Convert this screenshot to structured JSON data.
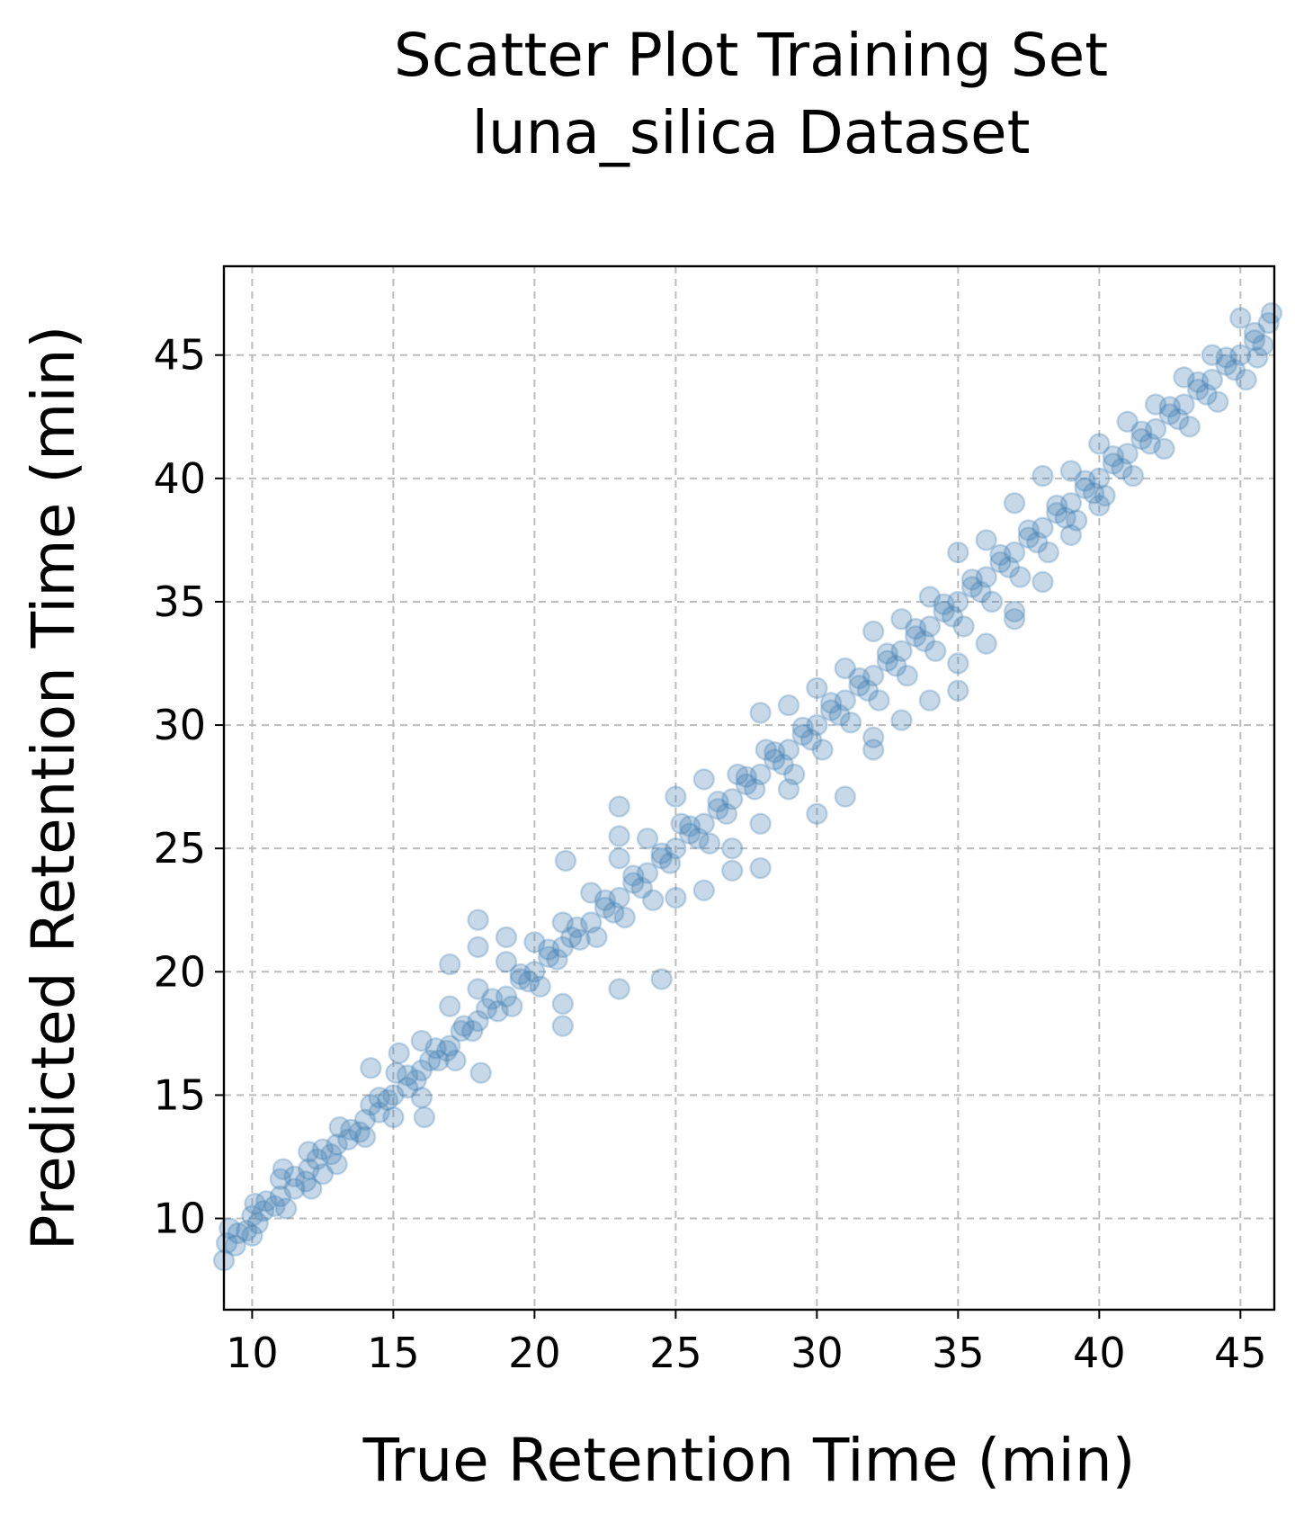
{
  "chart_data": {
    "type": "scatter",
    "title_line1": "Scatter Plot Training Set",
    "title_line2": "luna_silica Dataset",
    "xlabel": "True Retention Time (min)",
    "ylabel": "Predicted Retention Time (min)",
    "xlim": [
      9.0,
      46.2
    ],
    "ylim": [
      6.3,
      48.6
    ],
    "xticks": [
      10,
      15,
      20,
      25,
      30,
      35,
      40,
      45
    ],
    "yticks": [
      10,
      15,
      20,
      25,
      30,
      35,
      40,
      45
    ],
    "xtick_labels": [
      "10",
      "15",
      "20",
      "25",
      "30",
      "35",
      "40",
      "45"
    ],
    "ytick_labels": [
      "10",
      "15",
      "20",
      "25",
      "30",
      "35",
      "40",
      "45"
    ],
    "grid": true,
    "marker_color": "#4682b4",
    "marker_alpha": 0.3,
    "series": [
      {
        "points": [
          [
            9.0,
            8.3
          ],
          [
            9.1,
            9.0
          ],
          [
            9.2,
            9.6
          ],
          [
            9.4,
            8.9
          ],
          [
            9.8,
            9.5
          ],
          [
            10.0,
            9.3
          ],
          [
            10.0,
            10.1
          ],
          [
            10.1,
            10.6
          ],
          [
            10.2,
            9.8
          ],
          [
            10.4,
            10.3
          ],
          [
            10.8,
            10.5
          ],
          [
            11.0,
            10.9
          ],
          [
            11.0,
            11.6
          ],
          [
            11.1,
            12.0
          ],
          [
            11.2,
            10.4
          ],
          [
            11.5,
            11.2
          ],
          [
            11.9,
            11.5
          ],
          [
            12.0,
            12.0
          ],
          [
            12.0,
            12.7
          ],
          [
            12.1,
            11.2
          ],
          [
            12.3,
            12.4
          ],
          [
            12.5,
            11.8
          ],
          [
            12.8,
            12.6
          ],
          [
            13.0,
            13.0
          ],
          [
            13.0,
            12.2
          ],
          [
            13.1,
            13.7
          ],
          [
            13.4,
            13.2
          ],
          [
            13.8,
            13.5
          ],
          [
            14.0,
            14.0
          ],
          [
            14.0,
            13.3
          ],
          [
            14.2,
            14.6
          ],
          [
            14.2,
            16.1
          ],
          [
            14.5,
            14.3
          ],
          [
            14.8,
            14.8
          ],
          [
            15.0,
            15.0
          ],
          [
            15.0,
            14.1
          ],
          [
            15.1,
            15.9
          ],
          [
            15.2,
            16.7
          ],
          [
            15.5,
            15.3
          ],
          [
            15.8,
            15.6
          ],
          [
            16.0,
            16.0
          ],
          [
            16.0,
            14.9
          ],
          [
            16.0,
            17.2
          ],
          [
            16.1,
            14.1
          ],
          [
            16.3,
            16.4
          ],
          [
            16.6,
            16.4
          ],
          [
            16.9,
            16.8
          ],
          [
            17.0,
            17.0
          ],
          [
            17.0,
            20.3
          ],
          [
            17.0,
            18.6
          ],
          [
            17.2,
            16.4
          ],
          [
            17.4,
            17.6
          ],
          [
            17.8,
            17.6
          ],
          [
            18.0,
            18.0
          ],
          [
            18.0,
            21.0
          ],
          [
            18.0,
            22.1
          ],
          [
            18.0,
            19.3
          ],
          [
            18.1,
            15.9
          ],
          [
            18.3,
            18.5
          ],
          [
            18.7,
            18.4
          ],
          [
            19.0,
            19.0
          ],
          [
            19.0,
            21.4
          ],
          [
            19.0,
            20.4
          ],
          [
            19.2,
            18.6
          ],
          [
            19.5,
            19.7
          ],
          [
            19.8,
            19.6
          ],
          [
            20.0,
            20.0
          ],
          [
            20.0,
            21.2
          ],
          [
            20.2,
            19.4
          ],
          [
            20.5,
            20.6
          ],
          [
            20.8,
            20.5
          ],
          [
            21.0,
            21.0
          ],
          [
            21.0,
            17.8
          ],
          [
            21.0,
            18.7
          ],
          [
            21.0,
            22.0
          ],
          [
            21.1,
            24.5
          ],
          [
            21.3,
            21.4
          ],
          [
            21.6,
            21.3
          ],
          [
            22.0,
            22.0
          ],
          [
            22.0,
            23.2
          ],
          [
            22.2,
            21.4
          ],
          [
            22.5,
            22.6
          ],
          [
            22.8,
            22.4
          ],
          [
            23.0,
            23.0
          ],
          [
            23.0,
            19.3
          ],
          [
            23.0,
            26.7
          ],
          [
            23.0,
            25.5
          ],
          [
            23.0,
            24.6
          ],
          [
            23.2,
            22.2
          ],
          [
            23.5,
            23.6
          ],
          [
            23.8,
            23.4
          ],
          [
            24.0,
            24.0
          ],
          [
            24.0,
            25.4
          ],
          [
            24.2,
            22.9
          ],
          [
            24.5,
            19.7
          ],
          [
            24.5,
            24.6
          ],
          [
            24.8,
            24.4
          ],
          [
            25.0,
            25.0
          ],
          [
            25.0,
            27.1
          ],
          [
            25.0,
            23.0
          ],
          [
            25.2,
            26.0
          ],
          [
            25.5,
            25.6
          ],
          [
            25.8,
            25.4
          ],
          [
            26.0,
            26.0
          ],
          [
            26.0,
            23.3
          ],
          [
            26.0,
            27.8
          ],
          [
            26.2,
            25.2
          ],
          [
            26.5,
            26.6
          ],
          [
            26.8,
            26.4
          ],
          [
            27.0,
            27.0
          ],
          [
            27.0,
            24.1
          ],
          [
            27.0,
            25.0
          ],
          [
            27.2,
            28.0
          ],
          [
            27.5,
            27.6
          ],
          [
            27.8,
            27.4
          ],
          [
            28.0,
            28.0
          ],
          [
            28.0,
            24.2
          ],
          [
            28.0,
            26.0
          ],
          [
            28.0,
            30.5
          ],
          [
            28.2,
            29.0
          ],
          [
            28.5,
            28.6
          ],
          [
            28.8,
            28.4
          ],
          [
            29.0,
            29.0
          ],
          [
            29.0,
            30.8
          ],
          [
            29.0,
            27.4
          ],
          [
            29.2,
            28.0
          ],
          [
            29.5,
            29.6
          ],
          [
            29.8,
            29.4
          ],
          [
            30.0,
            30.0
          ],
          [
            30.0,
            26.4
          ],
          [
            30.0,
            31.5
          ],
          [
            30.2,
            29.0
          ],
          [
            30.5,
            30.6
          ],
          [
            30.8,
            30.4
          ],
          [
            31.0,
            31.0
          ],
          [
            31.0,
            27.1
          ],
          [
            31.0,
            32.3
          ],
          [
            31.2,
            30.1
          ],
          [
            31.5,
            31.6
          ],
          [
            31.8,
            31.4
          ],
          [
            32.0,
            32.0
          ],
          [
            32.0,
            29.0
          ],
          [
            32.0,
            29.5
          ],
          [
            32.0,
            33.8
          ],
          [
            32.2,
            31.0
          ],
          [
            32.5,
            32.6
          ],
          [
            32.8,
            32.4
          ],
          [
            33.0,
            33.0
          ],
          [
            33.0,
            30.2
          ],
          [
            33.0,
            34.3
          ],
          [
            33.2,
            32.0
          ],
          [
            33.5,
            33.6
          ],
          [
            33.8,
            33.4
          ],
          [
            34.0,
            34.0
          ],
          [
            34.0,
            31.0
          ],
          [
            34.0,
            35.2
          ],
          [
            34.2,
            33.0
          ],
          [
            34.5,
            34.6
          ],
          [
            34.8,
            34.4
          ],
          [
            35.0,
            35.0
          ],
          [
            35.0,
            31.4
          ],
          [
            35.0,
            32.5
          ],
          [
            35.0,
            37.0
          ],
          [
            35.2,
            34.0
          ],
          [
            35.5,
            35.6
          ],
          [
            35.8,
            35.4
          ],
          [
            36.0,
            36.0
          ],
          [
            36.0,
            33.3
          ],
          [
            36.0,
            37.5
          ],
          [
            36.2,
            35.0
          ],
          [
            36.5,
            36.6
          ],
          [
            36.8,
            36.4
          ],
          [
            37.0,
            37.0
          ],
          [
            37.0,
            34.3
          ],
          [
            37.0,
            34.6
          ],
          [
            37.0,
            39.0
          ],
          [
            37.2,
            36.0
          ],
          [
            37.5,
            37.6
          ],
          [
            37.8,
            37.4
          ],
          [
            38.0,
            38.0
          ],
          [
            38.0,
            35.8
          ],
          [
            38.0,
            40.1
          ],
          [
            38.2,
            37.0
          ],
          [
            38.5,
            38.6
          ],
          [
            38.8,
            38.4
          ],
          [
            39.0,
            39.0
          ],
          [
            39.0,
            37.7
          ],
          [
            39.0,
            40.3
          ],
          [
            39.2,
            38.3
          ],
          [
            39.5,
            39.6
          ],
          [
            39.8,
            39.4
          ],
          [
            40.0,
            40.0
          ],
          [
            40.0,
            38.9
          ],
          [
            40.0,
            41.4
          ],
          [
            40.2,
            39.3
          ],
          [
            40.5,
            40.6
          ],
          [
            40.8,
            40.4
          ],
          [
            41.0,
            41.0
          ],
          [
            41.0,
            42.3
          ],
          [
            41.2,
            40.1
          ],
          [
            41.5,
            41.6
          ],
          [
            41.8,
            41.4
          ],
          [
            42.0,
            42.0
          ],
          [
            42.0,
            43.0
          ],
          [
            42.3,
            41.2
          ],
          [
            42.5,
            42.6
          ],
          [
            42.8,
            42.4
          ],
          [
            43.0,
            43.0
          ],
          [
            43.0,
            44.1
          ],
          [
            43.2,
            42.1
          ],
          [
            43.5,
            43.6
          ],
          [
            43.8,
            43.4
          ],
          [
            44.0,
            44.0
          ],
          [
            44.0,
            45.0
          ],
          [
            44.2,
            43.1
          ],
          [
            44.5,
            44.6
          ],
          [
            44.8,
            44.4
          ],
          [
            45.0,
            45.0
          ],
          [
            45.0,
            46.5
          ],
          [
            45.2,
            44.0
          ],
          [
            45.5,
            45.6
          ],
          [
            45.8,
            45.4
          ],
          [
            46.0,
            46.3
          ],
          [
            46.1,
            46.7
          ],
          [
            45.6,
            44.9
          ],
          [
            9.5,
            9.4
          ],
          [
            10.5,
            10.7
          ],
          [
            11.5,
            11.7
          ],
          [
            12.5,
            12.8
          ],
          [
            13.5,
            13.6
          ],
          [
            14.5,
            14.9
          ],
          [
            15.5,
            15.8
          ],
          [
            16.5,
            16.9
          ],
          [
            17.5,
            17.8
          ],
          [
            18.5,
            18.9
          ],
          [
            19.5,
            19.9
          ],
          [
            20.5,
            20.9
          ],
          [
            21.5,
            21.8
          ],
          [
            22.5,
            22.9
          ],
          [
            23.5,
            23.9
          ],
          [
            24.5,
            24.8
          ],
          [
            25.5,
            25.9
          ],
          [
            26.5,
            26.9
          ],
          [
            27.5,
            27.9
          ],
          [
            28.5,
            28.9
          ],
          [
            29.5,
            29.9
          ],
          [
            30.5,
            30.9
          ],
          [
            31.5,
            31.9
          ],
          [
            32.5,
            32.9
          ],
          [
            33.5,
            33.9
          ],
          [
            34.5,
            34.9
          ],
          [
            35.5,
            35.9
          ],
          [
            36.5,
            36.9
          ],
          [
            37.5,
            37.9
          ],
          [
            38.5,
            38.9
          ],
          [
            39.5,
            39.9
          ],
          [
            40.5,
            40.9
          ],
          [
            41.5,
            41.9
          ],
          [
            42.5,
            42.9
          ],
          [
            43.5,
            43.9
          ],
          [
            44.5,
            44.9
          ],
          [
            45.5,
            45.9
          ]
        ]
      }
    ]
  }
}
